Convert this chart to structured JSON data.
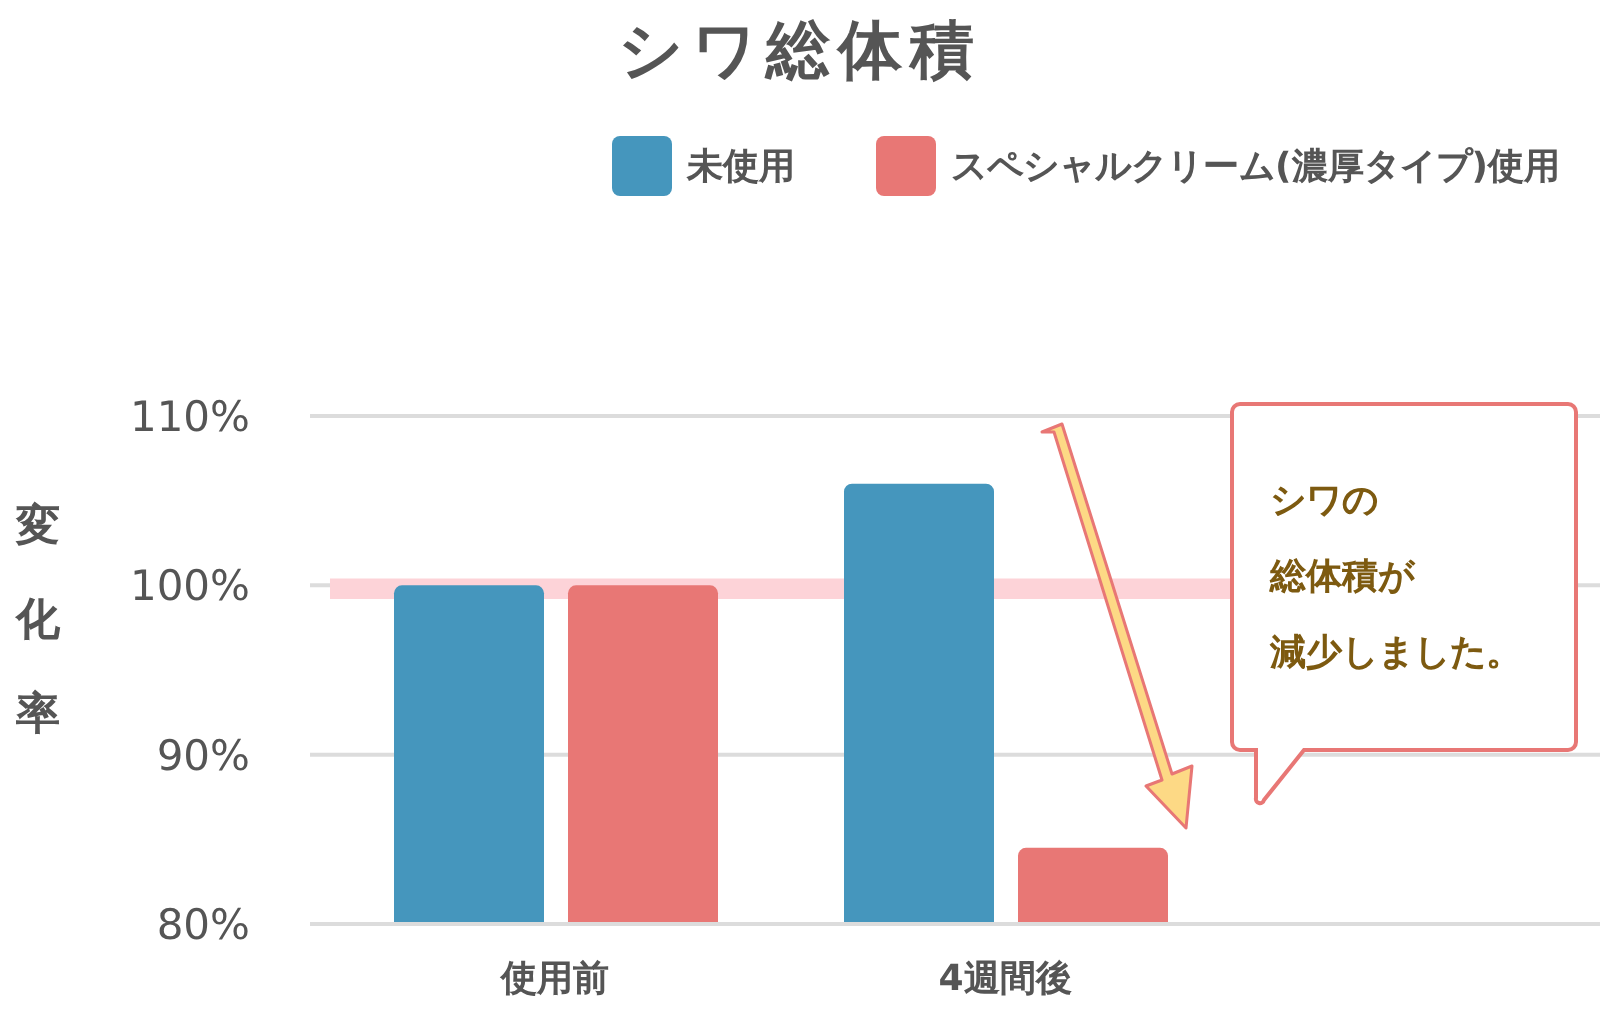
{
  "chart_data": {
    "type": "bar",
    "title": "シワ総体積",
    "ylabel": "変化率",
    "categories": [
      "使用前",
      "4週間後"
    ],
    "series": [
      {
        "name": "未使用",
        "color": "#4596bd",
        "values": [
          100,
          106
        ]
      },
      {
        "name": "スペシャルクリーム(濃厚タイプ)使用",
        "color": "#e87775",
        "values": [
          100,
          84.5
        ]
      }
    ],
    "ylim": [
      80,
      110
    ],
    "yticks": [
      {
        "value": 80,
        "label": "80%"
      },
      {
        "value": 90,
        "label": "90%"
      },
      {
        "value": 100,
        "label": "100%"
      },
      {
        "value": 110,
        "label": "110%"
      }
    ],
    "grid": "y",
    "legend": "top",
    "bands": [
      {
        "axis": "y",
        "from": 99.2,
        "to": 100.4,
        "color": "#fdd3d8"
      }
    ],
    "annotations": [
      "シワの",
      "総体積が",
      "減少しました。"
    ]
  }
}
